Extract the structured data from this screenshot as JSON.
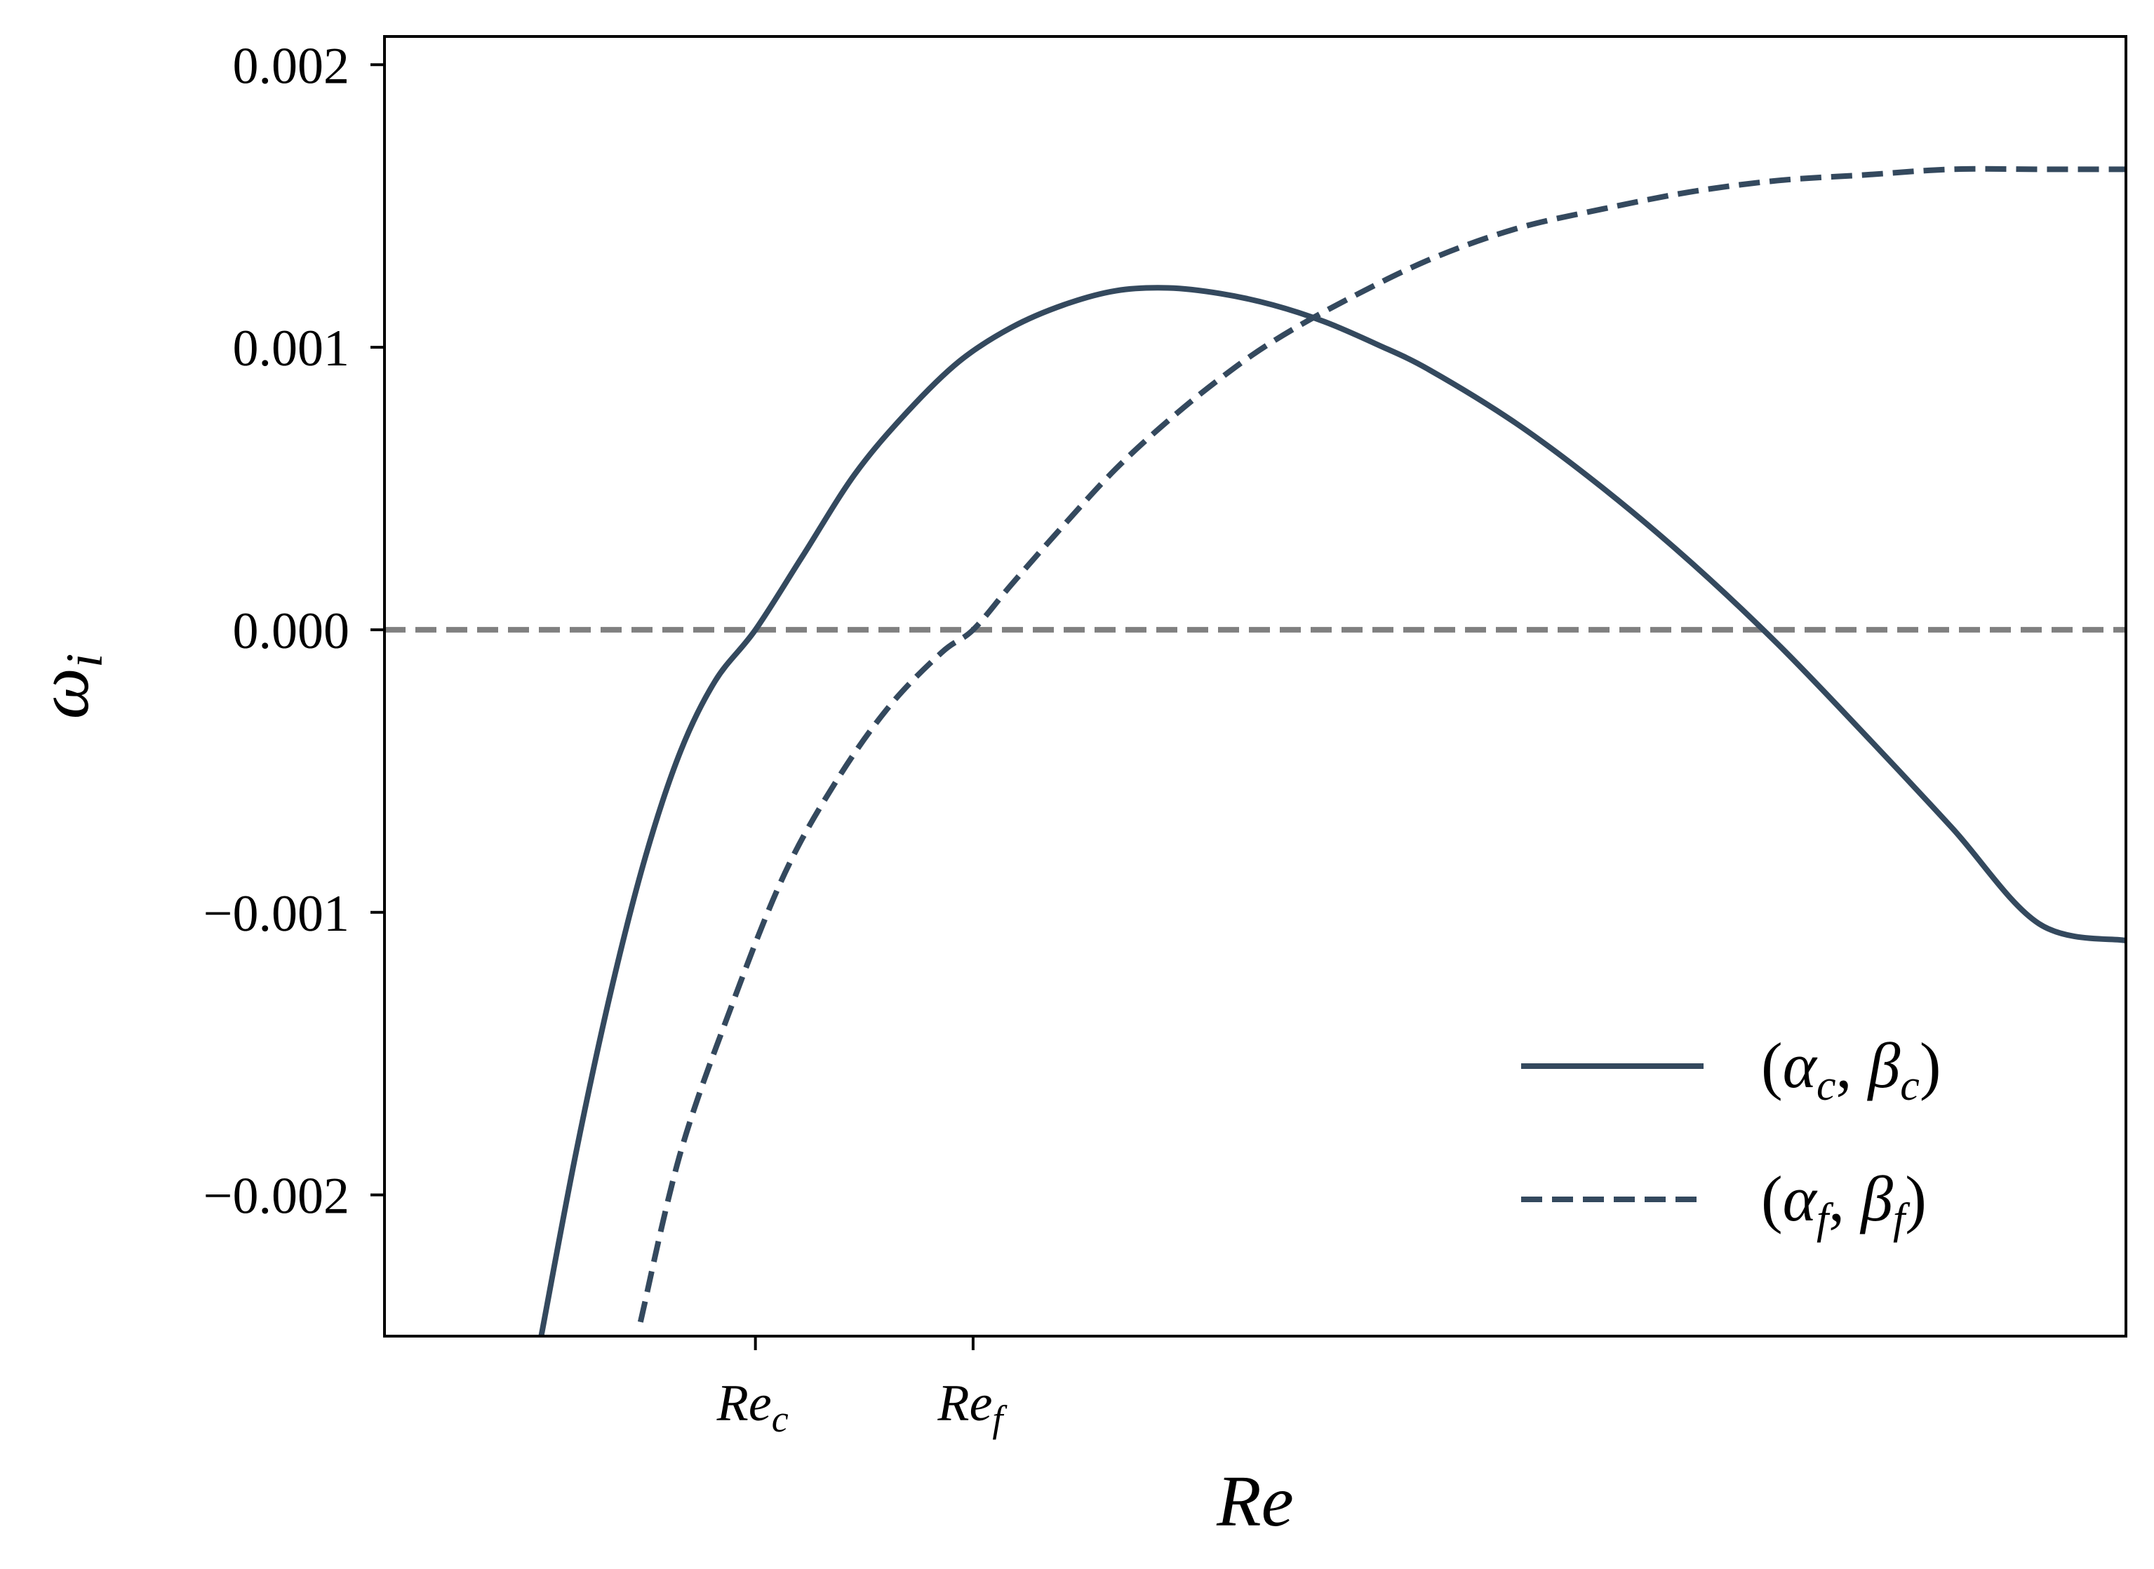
{
  "chart_data": {
    "type": "line",
    "title": "",
    "xlabel": "Re",
    "ylabel": "ω_i",
    "ylabel_main": "ω",
    "ylabel_sub": "i",
    "ylim": [
      -0.0025,
      0.0021
    ],
    "y_ticks": [
      {
        "value": -0.002,
        "label": "−0.002"
      },
      {
        "value": -0.001,
        "label": "−0.001"
      },
      {
        "value": 0.0,
        "label": "0.000"
      },
      {
        "value": 0.001,
        "label": "0.001"
      },
      {
        "value": 0.002,
        "label": "0.002"
      }
    ],
    "x_ticks": [
      {
        "value": 0.213,
        "main": "Re",
        "sub": "c"
      },
      {
        "value": 0.338,
        "main": "Re",
        "sub": "f"
      }
    ],
    "xlim": [
      0,
      1
    ],
    "grid": false,
    "legend_position": "lower-right",
    "colors": {
      "series": "#34495e",
      "reference": "#808080",
      "axes": "#000000"
    },
    "reference_line": {
      "y": 0.0,
      "style": "dashed"
    },
    "series": [
      {
        "name": "(α_c, β_c)",
        "legend_main_1": "α",
        "legend_sub_1": "c",
        "legend_main_2": "β",
        "legend_sub_2": "c",
        "style": "solid",
        "x": [
          0.09,
          0.11,
          0.13,
          0.15,
          0.17,
          0.19,
          0.213,
          0.24,
          0.27,
          0.3,
          0.33,
          0.36,
          0.39,
          0.42,
          0.45,
          0.48,
          0.51,
          0.54,
          0.57,
          0.6,
          0.65,
          0.7,
          0.75,
          0.8,
          0.85,
          0.9,
          0.95,
          1.0
        ],
        "y": [
          -0.0025,
          -0.00185,
          -0.00128,
          -0.0008,
          -0.00043,
          -0.00018,
          0.0,
          0.00026,
          0.00055,
          0.00077,
          0.00095,
          0.00107,
          0.00115,
          0.0012,
          0.00121,
          0.00119,
          0.00115,
          0.00109,
          0.00101,
          0.00092,
          0.00073,
          0.0005,
          0.00024,
          -5e-05,
          -0.00037,
          -0.0007,
          -0.00104,
          -0.0011
        ]
      },
      {
        "name": "(α_f, β_f)",
        "legend_main_1": "α",
        "legend_sub_1": "f",
        "legend_main_2": "β",
        "legend_sub_2": "f",
        "style": "dashed",
        "x": [
          0.147,
          0.17,
          0.2,
          0.23,
          0.26,
          0.29,
          0.32,
          0.338,
          0.36,
          0.39,
          0.42,
          0.45,
          0.48,
          0.51,
          0.55,
          0.6,
          0.65,
          0.7,
          0.75,
          0.8,
          0.85,
          0.9,
          0.95,
          1.0
        ],
        "y": [
          -0.00245,
          -0.00185,
          -0.00132,
          -0.00086,
          -0.00053,
          -0.00027,
          -8e-05,
          0.0,
          0.00016,
          0.00037,
          0.00057,
          0.00074,
          0.00089,
          0.00102,
          0.00116,
          0.00131,
          0.00142,
          0.00149,
          0.00155,
          0.00159,
          0.00161,
          0.00163,
          0.00163,
          0.00163
        ]
      }
    ]
  }
}
